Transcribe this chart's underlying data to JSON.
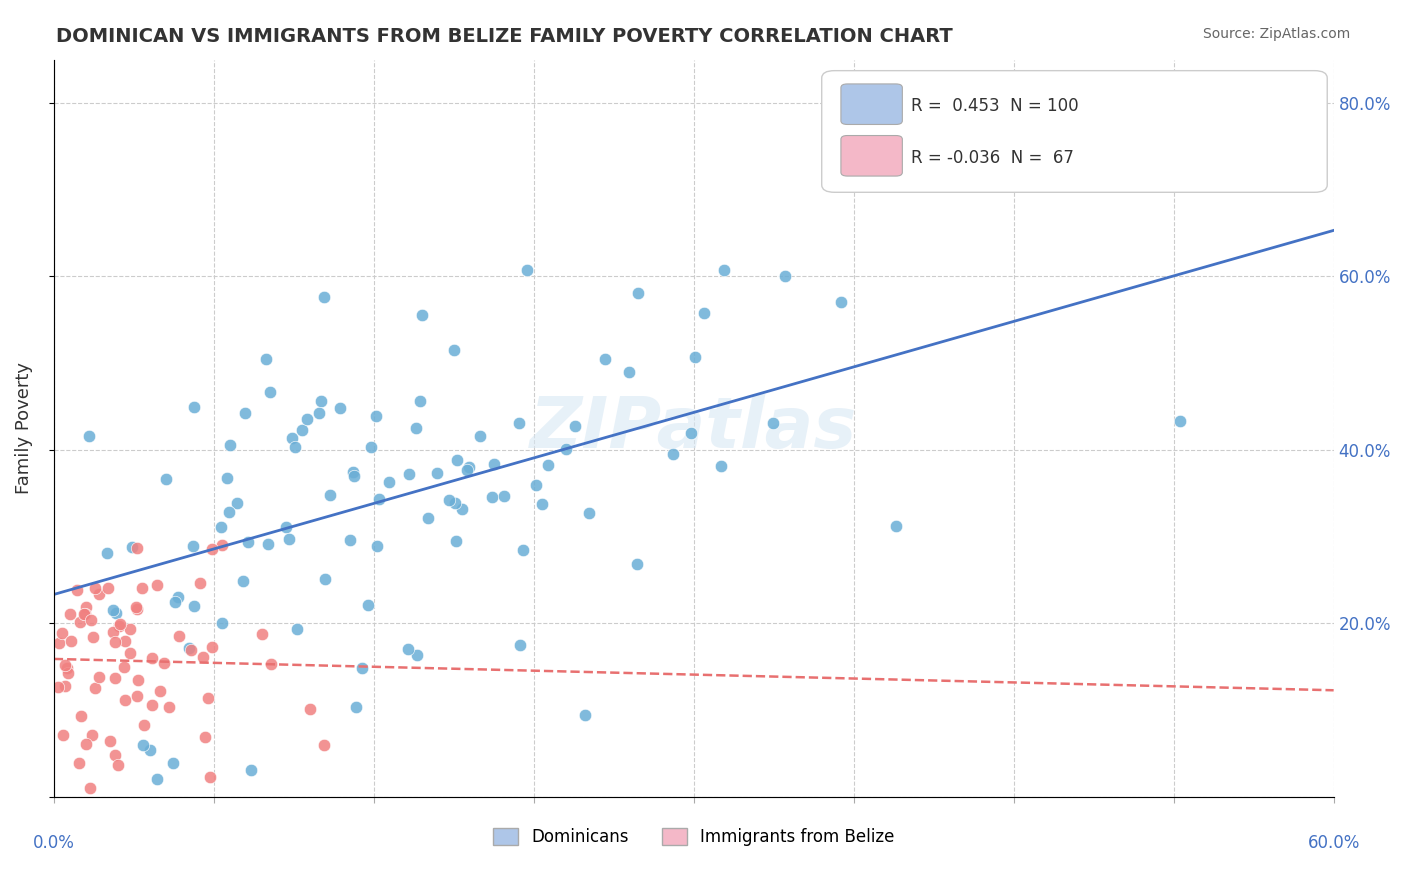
{
  "title": "DOMINICAN VS IMMIGRANTS FROM BELIZE FAMILY POVERTY CORRELATION CHART",
  "source": "Source: ZipAtlas.com",
  "ylabel": "Family Poverty",
  "xlim": [
    0.0,
    0.6
  ],
  "ylim": [
    0.0,
    0.85
  ],
  "legend_entry1_color": "#aec6e8",
  "legend_entry2_color": "#f4b8c8",
  "dominicans_color": "#6aaed6",
  "belize_color": "#f08080",
  "trend_dominicans_color": "#4472c4",
  "trend_belize_color": "#e87070",
  "watermark_text": "ZIPatlas",
  "dominicans_R": 0.453,
  "dominicans_N": 100,
  "belize_R": -0.036,
  "belize_N": 67,
  "seed": 42
}
